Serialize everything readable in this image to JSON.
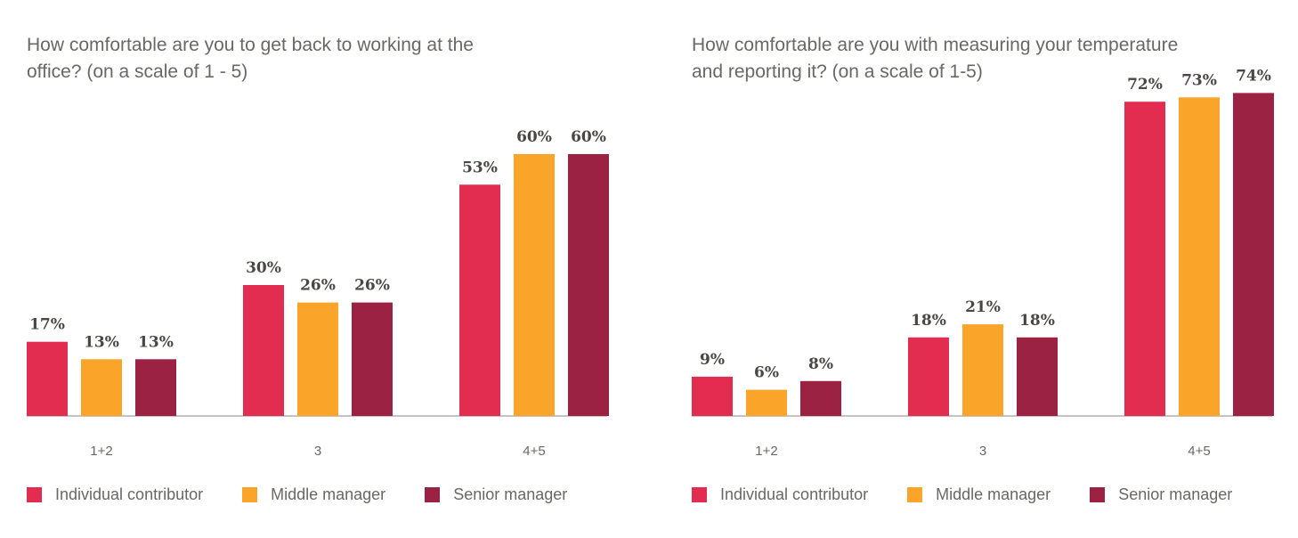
{
  "chart_data": [
    {
      "type": "bar",
      "title": "How comfortable are you to get back to working at the office? (on a scale of 1 - 5)",
      "categories": [
        "1+2",
        "3",
        "4+5"
      ],
      "series": [
        {
          "name": "Individual contributor",
          "values": [
            17,
            30,
            53
          ],
          "labels": [
            "17%",
            "30%",
            "53%"
          ],
          "color": "#e32d50"
        },
        {
          "name": "Middle manager",
          "values": [
            13,
            26,
            60
          ],
          "labels": [
            "13%",
            "26%",
            "60%"
          ],
          "color": "#fba42a"
        },
        {
          "name": "Senior manager",
          "values": [
            13,
            26,
            60
          ],
          "labels": [
            "13%",
            "26%",
            "60%"
          ],
          "color": "#9b2242"
        }
      ],
      "ylim": [
        0,
        60
      ],
      "grid": false,
      "legend_position": "bottom"
    },
    {
      "type": "bar",
      "title": "How comfortable are you with measuring your temperature and reporting it? (on a scale of 1-5)",
      "categories": [
        "1+2",
        "3",
        "4+5"
      ],
      "series": [
        {
          "name": "Individual contributor",
          "values": [
            9,
            18,
            72
          ],
          "labels": [
            "9%",
            "18%",
            "72%"
          ],
          "color": "#e32d50"
        },
        {
          "name": "Middle manager",
          "values": [
            6,
            21,
            73
          ],
          "labels": [
            "6%",
            "21%",
            "73%"
          ],
          "color": "#fba42a"
        },
        {
          "name": "Senior manager",
          "values": [
            8,
            18,
            74
          ],
          "labels": [
            "8%",
            "18%",
            "74%"
          ],
          "color": "#9b2242"
        }
      ],
      "ylim": [
        0,
        74
      ],
      "grid": false,
      "legend_position": "bottom"
    }
  ]
}
